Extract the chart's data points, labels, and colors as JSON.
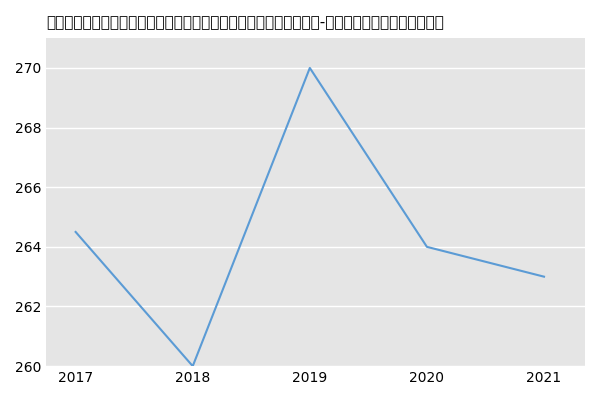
{
  "title": "太原理工大学新材料界面科学与工程教育部重点实验室材料与化工（-历年复试）研究生录取分数线",
  "x": [
    2017,
    2018,
    2019,
    2020,
    2021
  ],
  "y": [
    264.5,
    260,
    270,
    264,
    263
  ],
  "line_color": "#5b9bd5",
  "background_color": "#ffffff",
  "plot_bg_color": "#e5e5e5",
  "grid_color": "#ffffff",
  "ylim": [
    260,
    271
  ],
  "yticks": [
    260,
    262,
    264,
    266,
    268,
    270
  ],
  "xticks": [
    2017,
    2018,
    2019,
    2020,
    2021
  ],
  "title_fontsize": 11,
  "tick_fontsize": 10
}
